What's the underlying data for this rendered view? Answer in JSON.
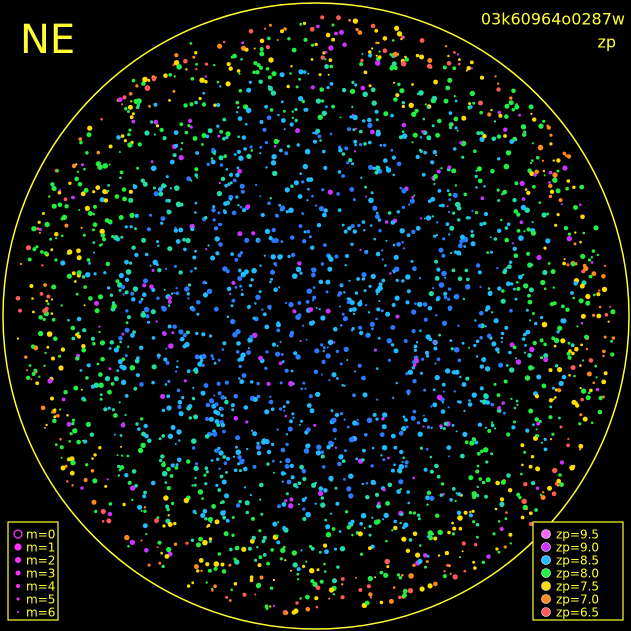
{
  "header": {
    "direction": "NE",
    "frame_id": "03k60964o0287w",
    "mode": "zp"
  },
  "magnitude_legend": [
    "m=0",
    "m=1",
    "m=2",
    "m=3",
    "m=4",
    "m=5",
    "m=6"
  ],
  "zp_legend": [
    {
      "label": "zp=9.5",
      "color": "#ff66ff"
    },
    {
      "label": "zp=9.0",
      "color": "#cc33ff"
    },
    {
      "label": "zp=8.5",
      "color": "#22bbff"
    },
    {
      "label": "zp=8.0",
      "color": "#22ee44"
    },
    {
      "label": "zp=7.5",
      "color": "#ffdd00"
    },
    {
      "label": "zp=7.0",
      "color": "#ff8a1a"
    },
    {
      "label": "zp=6.5",
      "color": "#ff5a5a"
    }
  ]
}
